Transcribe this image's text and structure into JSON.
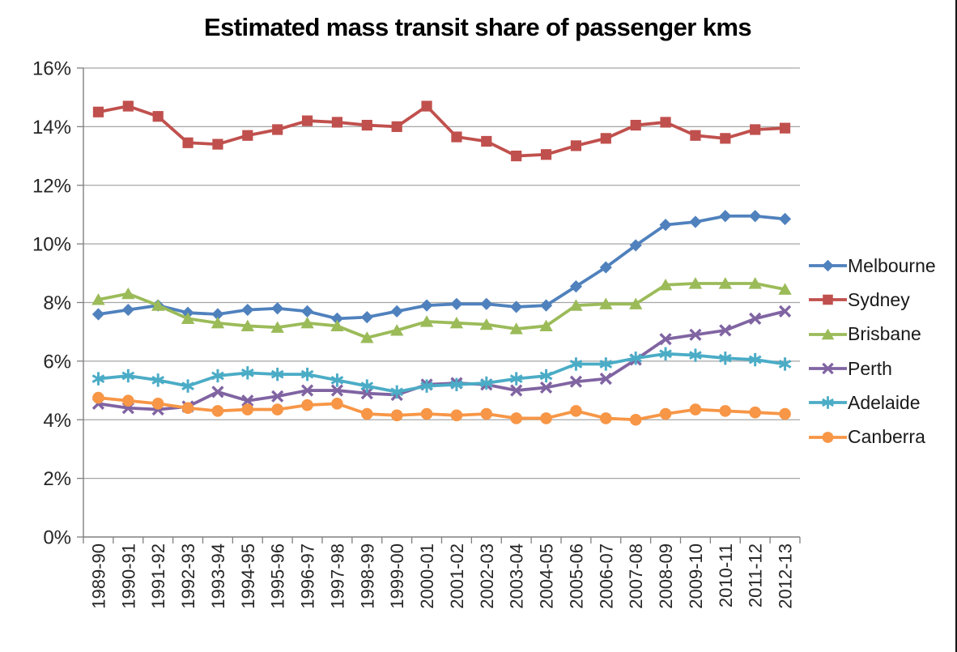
{
  "title": "Estimated mass transit share of passenger kms",
  "colors": {
    "gridline": "#a6a6a6",
    "axis": "#808080",
    "tick": "#808080",
    "axis_text": "#262626",
    "legend_text": "#1a1a1a",
    "title_text": "#000000",
    "window_edge": "#161616",
    "background": "#ffffff"
  },
  "chart_data": {
    "type": "line",
    "title": "Estimated mass transit share of passenger kms",
    "xlabel": "",
    "ylabel": "",
    "grid": true,
    "legend_position": "right",
    "y_axis": {
      "min": 0,
      "max": 16,
      "step": 2,
      "unit": "%",
      "tick_labels": [
        "0%",
        "2%",
        "4%",
        "6%",
        "8%",
        "10%",
        "12%",
        "14%",
        "16%"
      ]
    },
    "categories": [
      "1989-90",
      "1990-91",
      "1991-92",
      "1992-93",
      "1993-94",
      "1994-95",
      "1995-96",
      "1996-97",
      "1997-98",
      "1998-99",
      "1999-00",
      "2000-01",
      "2001-02",
      "2002-03",
      "2003-04",
      "2004-05",
      "2005-06",
      "2006-07",
      "2007-08",
      "2008-09",
      "2009-10",
      "2010-11",
      "2011-12",
      "2012-13"
    ],
    "series": [
      {
        "name": "Melbourne",
        "color": "#4F81BD",
        "marker": "diamond",
        "values": [
          7.6,
          7.75,
          7.9,
          7.65,
          7.6,
          7.75,
          7.8,
          7.7,
          7.45,
          7.5,
          7.7,
          7.9,
          7.95,
          7.95,
          7.85,
          7.9,
          8.55,
          9.2,
          9.95,
          10.65,
          10.75,
          10.95,
          10.95,
          10.85
        ]
      },
      {
        "name": "Sydney",
        "color": "#C0504D",
        "marker": "square",
        "values": [
          14.5,
          14.7,
          14.35,
          13.45,
          13.4,
          13.7,
          13.9,
          14.2,
          14.15,
          14.05,
          14.0,
          14.7,
          13.65,
          13.5,
          13.0,
          13.05,
          13.35,
          13.6,
          14.05,
          14.15,
          13.7,
          13.6,
          13.9,
          13.95
        ]
      },
      {
        "name": "Brisbane",
        "color": "#9BBB59",
        "marker": "triangle",
        "values": [
          8.1,
          8.3,
          7.9,
          7.45,
          7.3,
          7.2,
          7.15,
          7.3,
          7.2,
          6.8,
          7.05,
          7.35,
          7.3,
          7.25,
          7.1,
          7.2,
          7.9,
          7.95,
          7.95,
          8.6,
          8.65,
          8.65,
          8.65,
          8.45
        ]
      },
      {
        "name": "Perth",
        "color": "#8064A2",
        "marker": "x",
        "values": [
          4.55,
          4.4,
          4.35,
          4.45,
          4.95,
          4.65,
          4.8,
          5.0,
          5.0,
          4.9,
          4.85,
          5.2,
          5.25,
          5.2,
          5.0,
          5.1,
          5.3,
          5.4,
          6.05,
          6.75,
          6.9,
          7.05,
          7.45,
          7.7
        ]
      },
      {
        "name": "Adelaide",
        "color": "#4BACC6",
        "marker": "asterisk",
        "values": [
          5.4,
          5.5,
          5.35,
          5.15,
          5.5,
          5.6,
          5.55,
          5.55,
          5.35,
          5.15,
          4.95,
          5.15,
          5.2,
          5.25,
          5.4,
          5.5,
          5.9,
          5.9,
          6.1,
          6.25,
          6.2,
          6.1,
          6.05,
          5.9
        ]
      },
      {
        "name": "Canberra",
        "color": "#F79646",
        "marker": "circle",
        "values": [
          4.75,
          4.65,
          4.55,
          4.4,
          4.3,
          4.35,
          4.35,
          4.5,
          4.55,
          4.2,
          4.15,
          4.2,
          4.15,
          4.2,
          4.05,
          4.05,
          4.3,
          4.05,
          4.0,
          4.2,
          4.35,
          4.3,
          4.25,
          4.2
        ]
      }
    ]
  }
}
